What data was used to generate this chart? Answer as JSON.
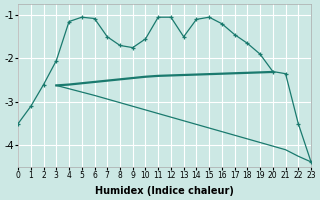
{
  "xlabel": "Humidex (Indice chaleur)",
  "background_color": "#cce8e4",
  "line_color": "#1a7a6e",
  "grid_color": "#ffffff",
  "xlim": [
    0,
    23
  ],
  "ylim": [
    -4.5,
    -0.75
  ],
  "yticks": [
    -4,
    -3,
    -2,
    -1
  ],
  "xticks": [
    0,
    1,
    2,
    3,
    4,
    5,
    6,
    7,
    8,
    9,
    10,
    11,
    12,
    13,
    14,
    15,
    16,
    17,
    18,
    19,
    20,
    21,
    22,
    23
  ],
  "curve1_x": [
    0,
    1,
    2,
    3,
    4,
    5,
    6,
    7,
    8,
    9,
    10,
    11,
    12,
    13,
    14,
    15,
    16,
    17,
    18,
    19,
    20,
    21,
    22,
    23
  ],
  "curve1_y": [
    -3.5,
    -3.1,
    -2.6,
    -2.05,
    -1.15,
    -1.05,
    -1.08,
    -1.5,
    -1.7,
    -1.75,
    -1.55,
    -1.05,
    -1.05,
    -1.5,
    -1.1,
    -1.05,
    -1.2,
    -1.45,
    -1.65,
    -1.9,
    -2.3,
    -2.35,
    -3.5,
    -4.38
  ],
  "curve2_x": [
    3,
    4,
    5,
    6,
    7,
    8,
    9,
    10,
    11,
    12,
    13,
    14,
    15,
    16,
    17,
    18,
    19,
    20
  ],
  "curve2_y": [
    -2.62,
    -2.6,
    -2.57,
    -2.54,
    -2.51,
    -2.48,
    -2.45,
    -2.42,
    -2.4,
    -2.39,
    -2.38,
    -2.37,
    -2.36,
    -2.35,
    -2.34,
    -2.33,
    -2.32,
    -2.31
  ],
  "curve3_x": [
    3,
    6,
    9,
    12,
    15,
    18,
    21,
    22,
    23
  ],
  "curve3_y": [
    -2.62,
    -2.85,
    -3.1,
    -3.35,
    -3.6,
    -3.85,
    -4.1,
    -4.25,
    -4.38
  ]
}
